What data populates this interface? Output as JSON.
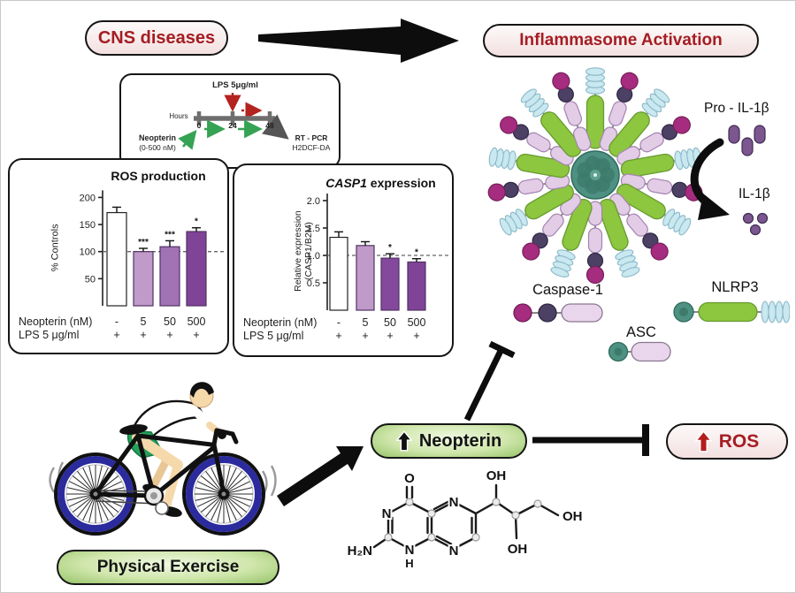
{
  "header": {
    "cns_label": "CNS diseases",
    "inflammasome_label": "Inflammasome Activation"
  },
  "protocol": {
    "lps_label": "LPS 5μg/ml",
    "hours_label": "Hours",
    "ticks": [
      "0",
      "24",
      "48"
    ],
    "neopterin_label": "Neopterin",
    "neopterin_dose": "(0-500 nM)",
    "rtpcr_label": "RT - PCR",
    "h2dcf_label": "H2DCF-DA"
  },
  "chart_data": [
    {
      "type": "bar",
      "title": "ROS production",
      "ylabel": "% Controls",
      "ylim": [
        0,
        200
      ],
      "yticks": [
        50,
        100,
        150,
        200
      ],
      "reference_line": 100,
      "categories": [
        "-",
        "5",
        "50",
        "500"
      ],
      "values": [
        172,
        100,
        109,
        137
      ],
      "errors": [
        10,
        6,
        11,
        7
      ],
      "significance": [
        "",
        "***",
        "***",
        "*"
      ],
      "bar_colors": [
        "#ffffff",
        "#c09ac9",
        "#a172b4",
        "#7f4397"
      ],
      "rows": [
        {
          "label": "Neopterin (nM)",
          "values": [
            "-",
            "5",
            "50",
            "500"
          ]
        },
        {
          "label": "LPS 5 μg/ml",
          "values": [
            "+",
            "+",
            "+",
            "+"
          ]
        }
      ]
    },
    {
      "type": "bar",
      "title_italic": "CASP1",
      "title": " expression",
      "ylabel": "Relative expression",
      "ylabel2": "(CASP1/B2M)",
      "ylim": [
        0,
        2
      ],
      "yticks": [
        0.5,
        1.0,
        1.5,
        2.0
      ],
      "ytick_labels": [
        "0.5",
        "1.0",
        "1.5",
        "2.0"
      ],
      "reference_line": 1.0,
      "categories": [
        "-",
        "5",
        "50",
        "500"
      ],
      "values": [
        1.33,
        1.18,
        0.95,
        0.88
      ],
      "errors": [
        0.1,
        0.07,
        0.08,
        0.06
      ],
      "significance": [
        "",
        "",
        "*",
        "*"
      ],
      "bar_colors": [
        "#ffffff",
        "#c09ac9",
        "#84499c",
        "#7f4397"
      ],
      "rows": [
        {
          "label": "Neopterin (nM)",
          "values": [
            "-",
            "5",
            "50",
            "500"
          ]
        },
        {
          "label": "LPS 5 μg/ml",
          "values": [
            "+",
            "+",
            "+",
            "+"
          ]
        }
      ]
    }
  ],
  "proteins": {
    "pro_il1b": "Pro - IL-1β",
    "il1b": "IL-1β",
    "caspase1": "Caspase-1",
    "asc": "ASC",
    "nlrp3": "NLRP3"
  },
  "nodes": {
    "neopterin": "Neopterin",
    "ros": "ROS",
    "physical_exercise": "Physical Exercise"
  },
  "chemistry": {
    "o": "O",
    "oh_top": "OH",
    "oh_side": "OH",
    "oh_bottom": "OH",
    "n1": "N",
    "n2": "N",
    "n3": "N",
    "n4": "N",
    "amine": "H₂N",
    "nh_h": "H"
  },
  "colors": {
    "accent_red": "#a51d23",
    "green_node": "#8dc63f",
    "lavender": "#e3cce6",
    "magenta": "#a62c80",
    "dark_node": "#4c4064",
    "teal": "#4e9182",
    "cyan": "#c9e8f0",
    "purple_light": "#c09ac9",
    "purple_dark": "#7f4397",
    "wheel_blue": "#2b2b9e",
    "arrow_black": "#0d0d0d"
  }
}
